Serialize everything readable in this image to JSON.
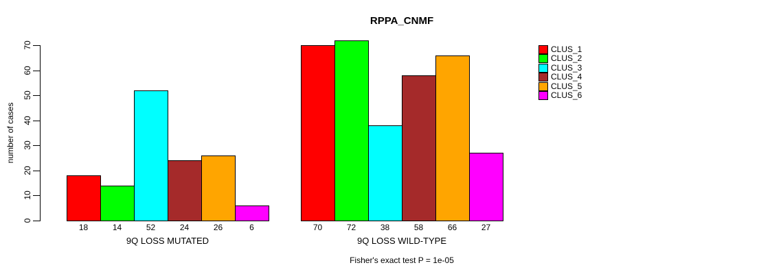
{
  "chart_data": {
    "type": "bar",
    "title": "RPPA_CNMF",
    "ylabel": "number of cases",
    "xlabel": "",
    "ylim": [
      0,
      70
    ],
    "yticks": [
      0,
      10,
      20,
      30,
      40,
      50,
      60,
      70
    ],
    "grid": false,
    "categories": [
      "CLUS_1",
      "CLUS_2",
      "CLUS_3",
      "CLUS_4",
      "CLUS_5",
      "CLUS_6"
    ],
    "colors": [
      "#FF0000",
      "#00FF00",
      "#00FFFF",
      "#A52A2A",
      "#FFA500",
      "#FF00FF"
    ],
    "bar_border_color": "#000000",
    "background_color": "#FFFFFF",
    "groups": [
      {
        "label": "9Q LOSS MUTATED",
        "values": [
          18,
          14,
          52,
          24,
          26,
          6
        ]
      },
      {
        "label": "9Q LOSS WILD-TYPE",
        "values": [
          70,
          72,
          38,
          58,
          66,
          27
        ]
      }
    ],
    "value_labels_under_bars": true,
    "legend": {
      "position": "right",
      "entries": [
        "CLUS_1",
        "CLUS_2",
        "CLUS_3",
        "CLUS_4",
        "CLUS_5",
        "CLUS_6"
      ]
    },
    "footnote": "Fisher's exact test P = 1e-05"
  }
}
